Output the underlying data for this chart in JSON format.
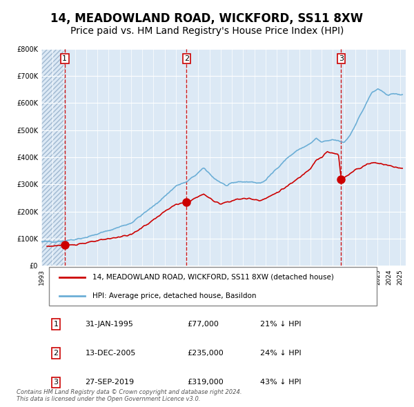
{
  "title": "14, MEADOWLAND ROAD, WICKFORD, SS11 8XW",
  "subtitle": "Price paid vs. HM Land Registry's House Price Index (HPI)",
  "legend_line1": "14, MEADOWLAND ROAD, WICKFORD, SS11 8XW (detached house)",
  "legend_line2": "HPI: Average price, detached house, Basildon",
  "footnote": "Contains HM Land Registry data © Crown copyright and database right 2024.\nThis data is licensed under the Open Government Licence v3.0.",
  "transactions": [
    {
      "num": 1,
      "date": "31-JAN-1995",
      "price": 77000,
      "pct": "21%",
      "direction": "↓"
    },
    {
      "num": 2,
      "date": "13-DEC-2005",
      "price": 235000,
      "pct": "24%",
      "direction": "↓"
    },
    {
      "num": 3,
      "date": "27-SEP-2019",
      "price": 319000,
      "pct": "43%",
      "direction": "↓"
    }
  ],
  "transaction_dates_decimal": [
    1995.08,
    2005.95,
    2019.74
  ],
  "transaction_prices": [
    77000,
    235000,
    319000
  ],
  "hpi_color": "#6baed6",
  "price_color": "#cc0000",
  "dashed_line_color": "#cc0000",
  "background_color": "#dce9f5",
  "plot_bg_color": "#dce9f5",
  "hatch_color": "#b0c4de",
  "ylim": [
    0,
    800000
  ],
  "yticks": [
    0,
    100000,
    200000,
    300000,
    400000,
    500000,
    600000,
    700000,
    800000
  ],
  "xlim_start": 1993.0,
  "xlim_end": 2025.5,
  "grid_color": "#ffffff",
  "title_fontsize": 12,
  "subtitle_fontsize": 10,
  "axis_fontsize": 8,
  "marker_size": 8
}
